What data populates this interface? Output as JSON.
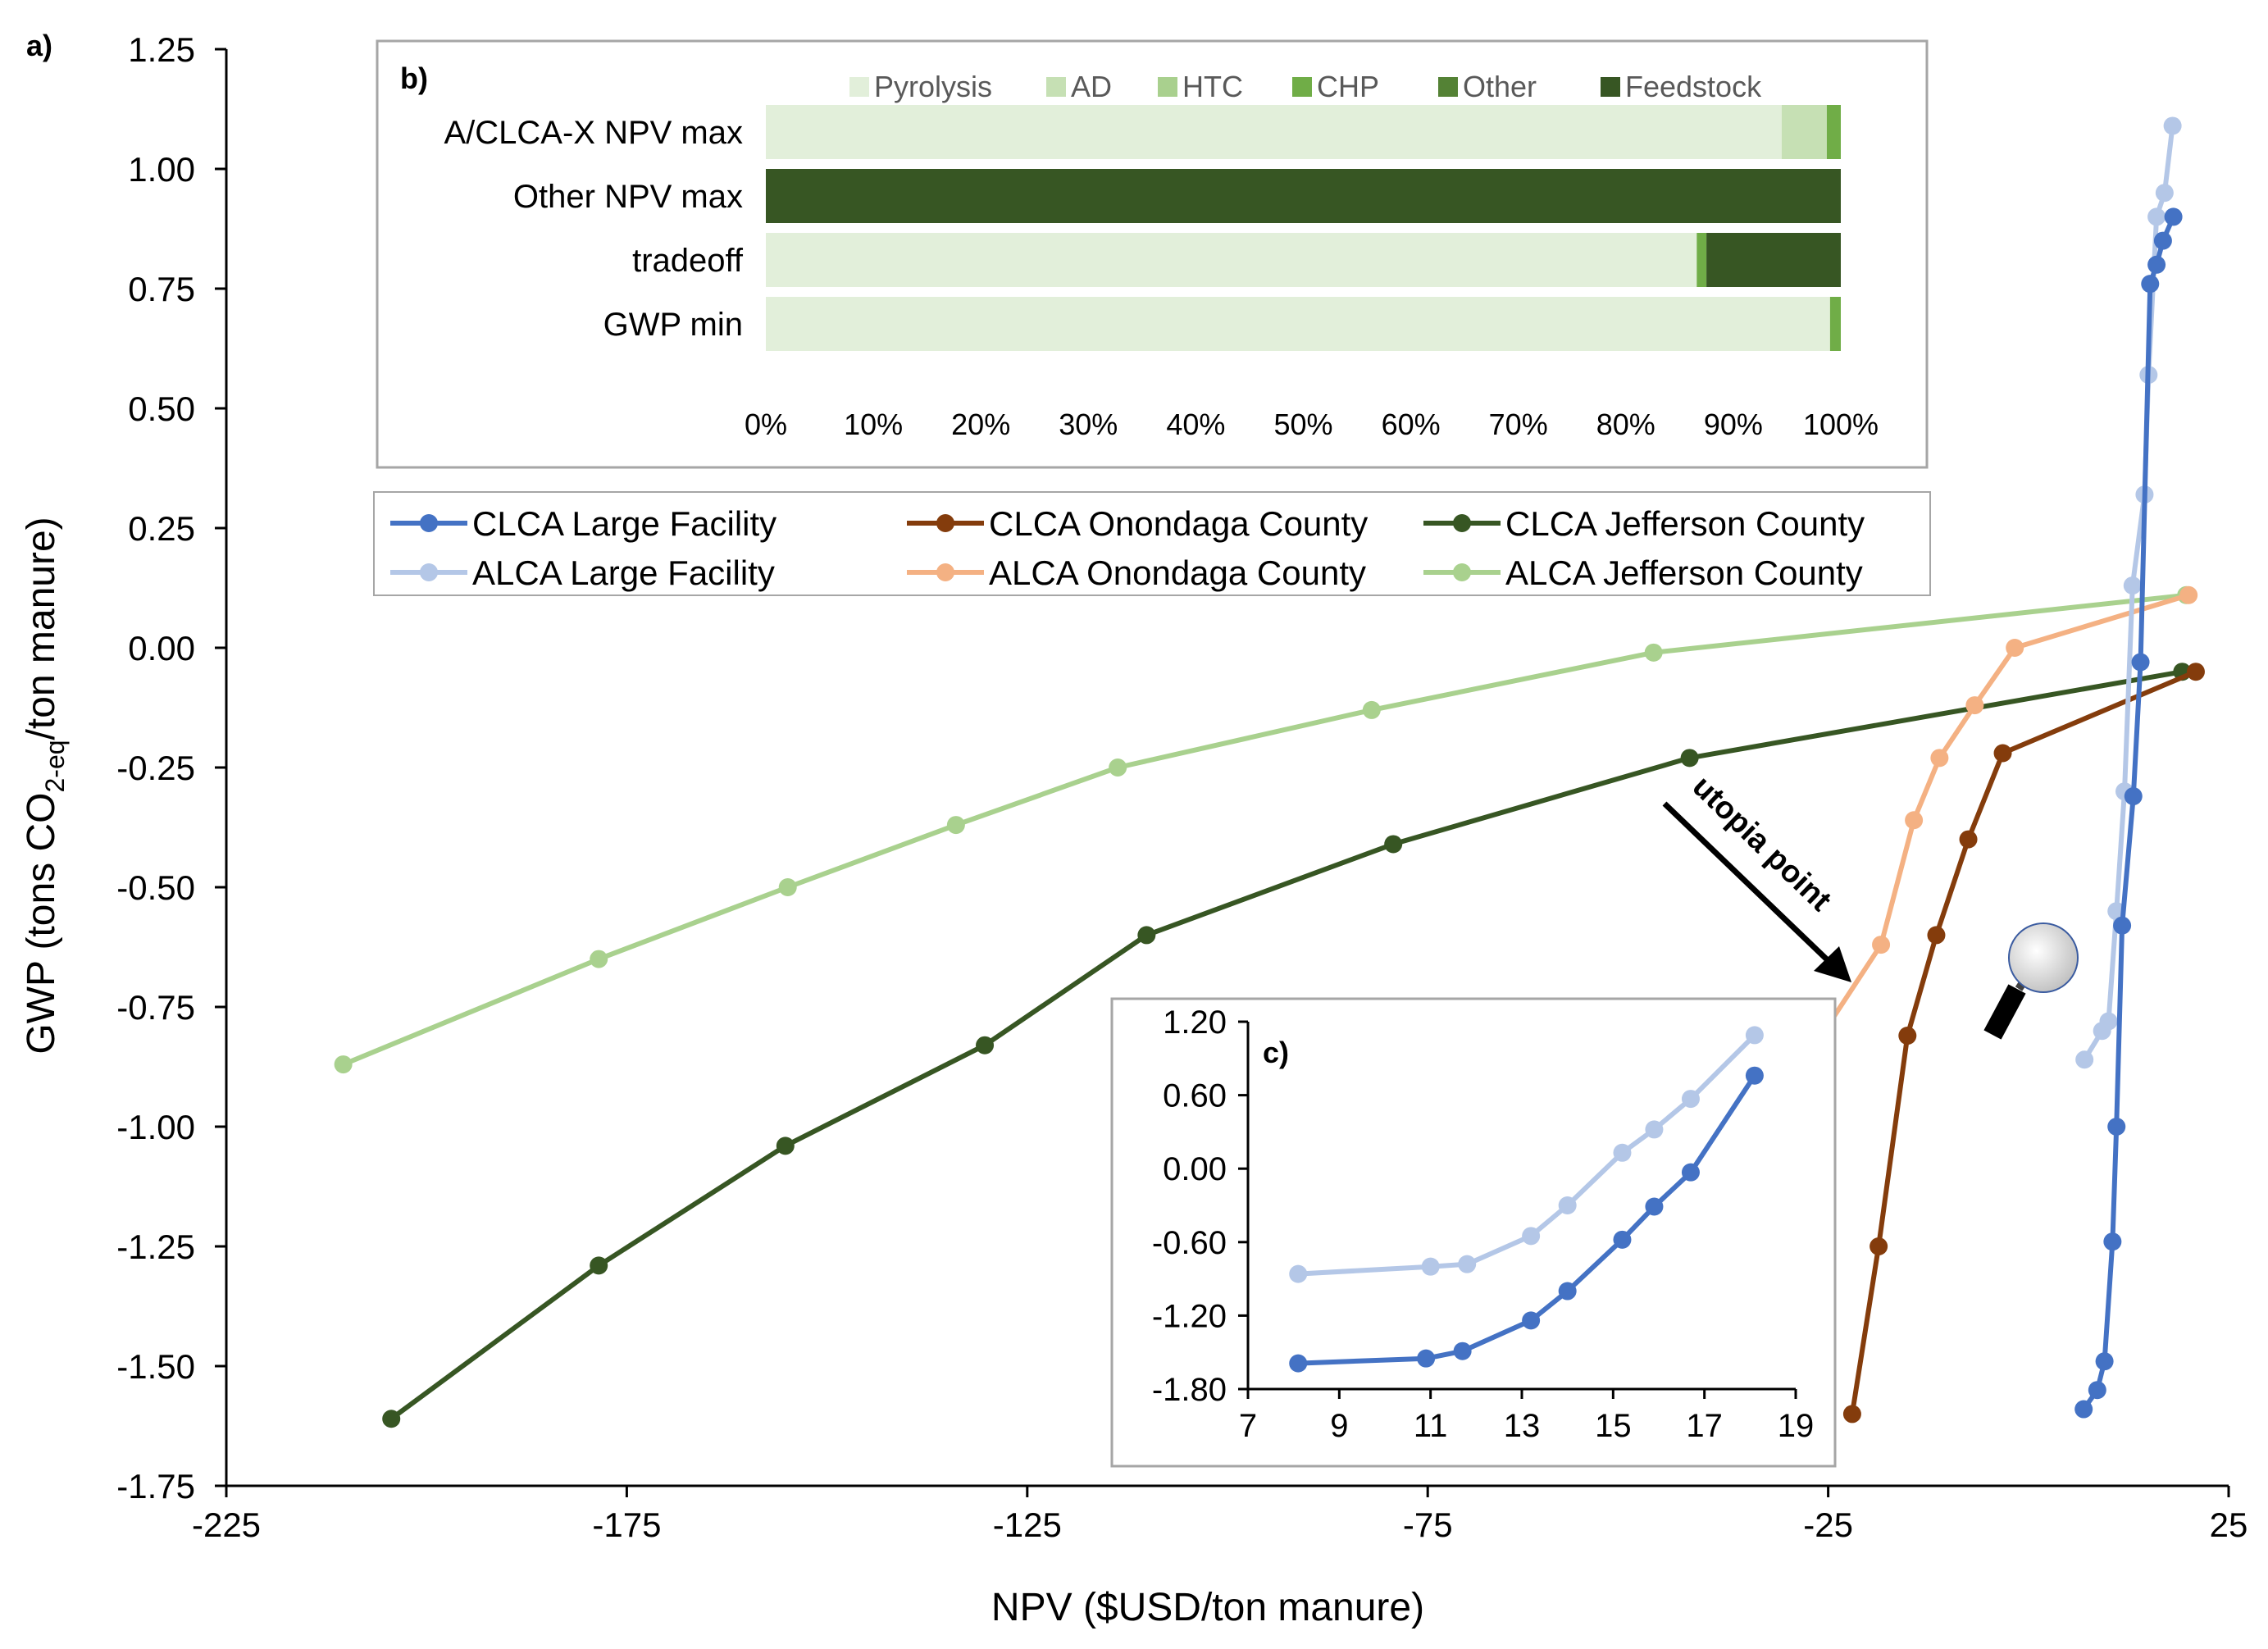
{
  "panel_labels": {
    "a": "a)",
    "b": "b)",
    "c": "c)"
  },
  "colors": {
    "clca_large": "#4472C4",
    "alca_large": "#B4C7E7",
    "clca_onondaga": "#843C0C",
    "alca_onondaga": "#F4B183",
    "clca_jefferson": "#375623",
    "alca_jefferson": "#A9D18E",
    "pyrolysis": "#E2EFDA",
    "ad": "#C6E0B4",
    "htc": "#A9D08E",
    "chp": "#70AD47",
    "other": "#548235",
    "feedstock": "#375623"
  },
  "annotation": {
    "text": "utopia point",
    "icon": "magnifier-icon"
  },
  "chart_data": [
    {
      "id": "a",
      "type": "line",
      "xlabel": "NPV ($USD/ton manure)",
      "ylabel_parts": [
        "GWP (tons CO",
        "2-eq",
        "/ton manure)"
      ],
      "xlim": [
        -225,
        25
      ],
      "ylim": [
        -1.75,
        1.25
      ],
      "xticks": [
        "-225",
        "-175",
        "-125",
        "-75",
        "-25",
        "25"
      ],
      "xtick_values": [
        -225,
        -175,
        -125,
        -75,
        -25,
        25
      ],
      "yticks": [
        "1.25",
        "1.00",
        "0.75",
        "0.50",
        "0.25",
        "0.00",
        "-0.25",
        "-0.50",
        "-0.75",
        "-1.00",
        "-1.25",
        "-1.50",
        "-1.75"
      ],
      "ytick_values": [
        1.25,
        1.0,
        0.75,
        0.5,
        0.25,
        0.0,
        -0.25,
        -0.5,
        -0.75,
        -1.0,
        -1.25,
        -1.5,
        -1.75
      ],
      "grid": false,
      "legend_position": "center-right",
      "series": [
        {
          "name": "CLCA Large Facility",
          "color_key": "clca_large",
          "x": [
            6.9,
            8.6,
            9.5,
            10.5,
            11.0,
            11.7,
            13.1,
            14.0,
            15.2,
            16.0,
            16.8,
            18.1
          ],
          "y": [
            -1.59,
            -1.55,
            -1.49,
            -1.24,
            -1.0,
            -0.58,
            -0.31,
            -0.03,
            0.76,
            0.8,
            0.85,
            0.9
          ]
        },
        {
          "name": "ALCA Large Facility",
          "color_key": "alca_large",
          "x": [
            7.0,
            9.2,
            10.0,
            11.0,
            12.0,
            13.0,
            14.5,
            15.0,
            16.0,
            17.0,
            18.0
          ],
          "y": [
            -0.86,
            -0.8,
            -0.78,
            -0.55,
            -0.3,
            0.13,
            0.32,
            0.57,
            0.9,
            0.95,
            1.09
          ]
        },
        {
          "name": "CLCA Onondaga County",
          "color_key": "clca_onondaga",
          "x": [
            -22,
            -18.7,
            -15.1,
            -11.5,
            -7.5,
            -3.2,
            20.9
          ],
          "y": [
            -1.6,
            -1.25,
            -0.81,
            -0.6,
            -0.4,
            -0.22,
            -0.05
          ]
        },
        {
          "name": "ALCA Onondaga County",
          "color_key": "alca_onondaga",
          "x": [
            -28.2,
            -18.4,
            -14.3,
            -11.1,
            -6.7,
            -1.7,
            20.0
          ],
          "y": [
            -0.87,
            -0.62,
            -0.36,
            -0.23,
            -0.12,
            0.0,
            0.11
          ]
        },
        {
          "name": "CLCA Jefferson County",
          "color_key": "clca_jefferson",
          "x": [
            -204.4,
            -178.5,
            -155.2,
            -130.3,
            -110.1,
            -79.3,
            -42.3,
            19.2
          ],
          "y": [
            -1.61,
            -1.29,
            -1.04,
            -0.83,
            -0.6,
            -0.41,
            -0.23,
            -0.05
          ]
        },
        {
          "name": "ALCA Jefferson County",
          "color_key": "alca_jefferson",
          "x": [
            -210.4,
            -178.5,
            -154.9,
            -133.9,
            -113.7,
            -82.0,
            -46.8,
            19.7
          ],
          "y": [
            -0.87,
            -0.65,
            -0.5,
            -0.37,
            -0.25,
            -0.13,
            -0.01,
            0.11
          ]
        }
      ]
    },
    {
      "id": "b",
      "type": "bar",
      "orientation": "horizontal",
      "stacked": true,
      "categories": [
        "A/CLCA-X NPV max",
        "Other NPV max",
        "tradeoff",
        "GWP min"
      ],
      "xticks": [
        "0%",
        "10%",
        "20%",
        "30%",
        "40%",
        "50%",
        "60%",
        "70%",
        "80%",
        "90%",
        "100%"
      ],
      "xlim": [
        0,
        100
      ],
      "legend_position": "top",
      "series": [
        {
          "name": "Pyrolysis",
          "color_key": "pyrolysis",
          "values": [
            94.5,
            0,
            86.6,
            99.0
          ]
        },
        {
          "name": "AD",
          "color_key": "ad",
          "values": [
            4.2,
            0,
            0,
            0
          ]
        },
        {
          "name": "HTC",
          "color_key": "htc",
          "values": [
            0,
            0,
            0,
            0
          ]
        },
        {
          "name": "CHP",
          "color_key": "chp",
          "values": [
            1.3,
            0,
            0.9,
            1.0
          ]
        },
        {
          "name": "Other",
          "color_key": "other",
          "values": [
            0,
            0,
            0,
            0
          ]
        },
        {
          "name": "Feedstock",
          "color_key": "feedstock",
          "values": [
            0,
            100,
            12.5,
            0
          ]
        }
      ]
    },
    {
      "id": "c",
      "type": "line",
      "xlim": [
        7,
        19
      ],
      "ylim": [
        -1.8,
        1.2
      ],
      "xticks": [
        "7",
        "9",
        "11",
        "13",
        "15",
        "17",
        "19"
      ],
      "xtick_values": [
        7,
        9,
        11,
        13,
        15,
        17,
        19
      ],
      "yticks": [
        "1.20",
        "0.60",
        "0.00",
        "-0.60",
        "-1.20",
        "-1.80"
      ],
      "ytick_values": [
        1.2,
        0.6,
        0.0,
        -0.6,
        -1.2,
        -1.8
      ],
      "series": [
        {
          "color_key": "alca_large",
          "x": [
            8.1,
            11.0,
            11.8,
            13.2,
            14.0,
            15.2,
            15.9,
            16.7,
            18.1
          ],
          "y": [
            -0.86,
            -0.8,
            -0.78,
            -0.55,
            -0.3,
            0.13,
            0.32,
            0.57,
            1.09
          ]
        },
        {
          "color_key": "clca_large",
          "x": [
            8.1,
            10.9,
            11.7,
            13.2,
            14.0,
            15.2,
            15.9,
            16.7,
            18.1
          ],
          "y": [
            -1.59,
            -1.55,
            -1.49,
            -1.24,
            -1.0,
            -0.58,
            -0.31,
            -0.03,
            0.76
          ]
        }
      ]
    }
  ]
}
